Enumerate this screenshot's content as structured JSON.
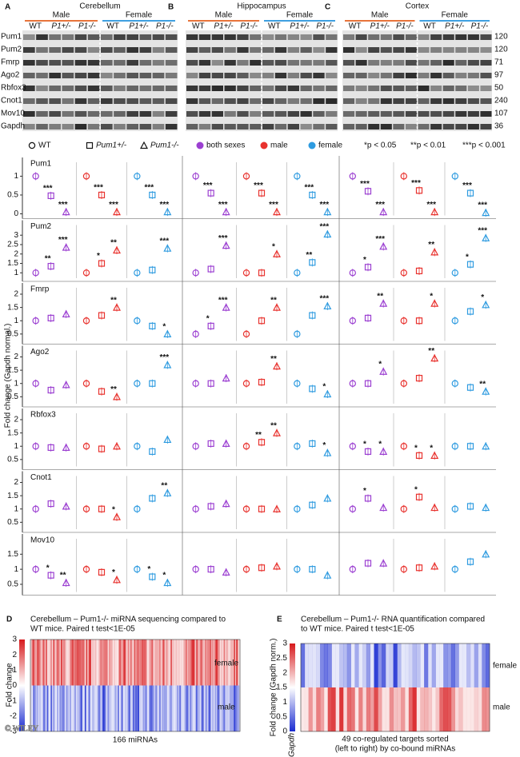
{
  "blots": {
    "regions": [
      {
        "letter": "A",
        "title": "Cerebellum"
      },
      {
        "letter": "B",
        "title": "Hippocampus"
      },
      {
        "letter": "C",
        "title": "Cortex"
      }
    ],
    "sexes": [
      {
        "name": "Male",
        "color": "#e8743b"
      },
      {
        "name": "Female",
        "color": "#3fa0e0"
      }
    ],
    "genotypes": [
      "WT",
      "P1+/-",
      "P1-/-"
    ],
    "proteins": [
      "Pum1",
      "Pum2",
      "Fmrp",
      "Ago2",
      "Rbfox3",
      "Cnot1",
      "Mov10",
      "Gapdh"
    ],
    "sizes": [
      "120",
      "120",
      "71",
      "97",
      "50",
      "240",
      "107",
      "36"
    ]
  },
  "legend": {
    "shapes": [
      "WT",
      "Pum1+/-",
      "Pum1-/-"
    ],
    "groups": [
      {
        "name": "both sexes",
        "color": "#9b3fd1"
      },
      {
        "name": "male",
        "color": "#e8322e"
      },
      {
        "name": "female",
        "color": "#2e9be0"
      }
    ],
    "pvalues": [
      "*p < 0.05",
      "**p < 0.01",
      "***p < 0.001"
    ]
  },
  "dot_plots": {
    "y_label": "Fold change (Gapdh normal.)",
    "rows": [
      {
        "protein": "Pum1",
        "ylim": [
          0,
          1.2
        ],
        "yticks": [
          0,
          0.5,
          1
        ],
        "regions": [
          [
            {
              "values": [
                1,
                0.48,
                0.05
              ],
              "sig": [
                null,
                "***",
                "***"
              ]
            },
            {
              "values": [
                1,
                0.5,
                0.05
              ],
              "sig": [
                null,
                "***",
                "***"
              ]
            },
            {
              "values": [
                1,
                0.5,
                0.05
              ],
              "sig": [
                null,
                "***",
                "***"
              ]
            }
          ],
          [
            {
              "values": [
                1,
                0.55,
                0.05
              ],
              "sig": [
                null,
                "***",
                "***"
              ]
            },
            {
              "values": [
                1,
                0.55,
                0.05
              ],
              "sig": [
                null,
                "***",
                "***"
              ]
            },
            {
              "values": [
                1,
                0.5,
                0.05
              ],
              "sig": [
                null,
                "***",
                "***"
              ]
            }
          ],
          [
            {
              "values": [
                1,
                0.6,
                0.05
              ],
              "sig": [
                null,
                "***",
                "***"
              ]
            },
            {
              "values": [
                1,
                0.62,
                0.05
              ],
              "sig": [
                null,
                "***",
                "***"
              ]
            },
            {
              "values": [
                1,
                0.55,
                0.03
              ],
              "sig": [
                null,
                "***",
                "***"
              ]
            }
          ]
        ]
      },
      {
        "protein": "Pum2",
        "ylim": [
          0.8,
          3.2
        ],
        "yticks": [
          1,
          1.5,
          2,
          2.5,
          3
        ],
        "regions": [
          [
            {
              "values": [
                1,
                1.35,
                2.35
              ],
              "sig": [
                null,
                "**",
                "***"
              ]
            },
            {
              "values": [
                1,
                1.5,
                2.2
              ],
              "sig": [
                null,
                "*",
                "**"
              ]
            },
            {
              "values": [
                1,
                1.15,
                2.3
              ],
              "sig": [
                null,
                null,
                "***"
              ]
            }
          ],
          [
            {
              "values": [
                1,
                1.2,
                2.45
              ],
              "sig": [
                null,
                null,
                "***"
              ]
            },
            {
              "values": [
                1,
                1,
                2
              ],
              "sig": [
                null,
                null,
                "*"
              ]
            },
            {
              "values": [
                1,
                1.55,
                3.05
              ],
              "sig": [
                null,
                "**",
                "***"
              ]
            }
          ],
          [
            {
              "values": [
                1,
                1.3,
                2.4
              ],
              "sig": [
                null,
                "*",
                "***"
              ]
            },
            {
              "values": [
                1,
                1.1,
                2.1
              ],
              "sig": [
                null,
                null,
                "**"
              ]
            },
            {
              "values": [
                1,
                1.45,
                2.85
              ],
              "sig": [
                null,
                "*",
                "***"
              ]
            }
          ]
        ]
      },
      {
        "protein": "Fmrp",
        "ylim": [
          0.3,
          2
        ],
        "yticks": [
          0.5,
          1,
          1.5,
          2
        ],
        "regions": [
          [
            {
              "values": [
                1,
                1.1,
                1.25
              ],
              "sig": [
                null,
                null,
                null
              ]
            },
            {
              "values": [
                1,
                1.2,
                1.5
              ],
              "sig": [
                null,
                null,
                "**"
              ]
            },
            {
              "values": [
                1,
                0.8,
                0.5
              ],
              "sig": [
                null,
                null,
                "*"
              ]
            }
          ],
          [
            {
              "values": [
                0.5,
                0.8,
                1.5
              ],
              "sig": [
                null,
                "*",
                "***"
              ]
            },
            {
              "values": [
                0.5,
                1,
                1.5
              ],
              "sig": [
                null,
                null,
                "**"
              ]
            },
            {
              "values": [
                0.5,
                1.2,
                1.55
              ],
              "sig": [
                null,
                null,
                "***"
              ]
            }
          ],
          [
            {
              "values": [
                1,
                1.1,
                1.65
              ],
              "sig": [
                null,
                null,
                "**"
              ]
            },
            {
              "values": [
                1,
                1,
                1.65
              ],
              "sig": [
                null,
                null,
                "*"
              ]
            },
            {
              "values": [
                1,
                1.35,
                1.6
              ],
              "sig": [
                null,
                null,
                "*"
              ]
            }
          ]
        ]
      },
      {
        "protein": "Ago2",
        "ylim": [
          0.3,
          2
        ],
        "yticks": [
          0.5,
          1,
          1.5,
          2
        ],
        "regions": [
          [
            {
              "values": [
                1,
                0.75,
                0.95
              ],
              "sig": [
                null,
                null,
                null
              ]
            },
            {
              "values": [
                1,
                0.7,
                0.5
              ],
              "sig": [
                null,
                null,
                "**"
              ]
            },
            {
              "values": [
                1,
                1,
                1.7
              ],
              "sig": [
                null,
                null,
                "***"
              ]
            }
          ],
          [
            {
              "values": [
                1,
                1,
                1.2
              ],
              "sig": [
                null,
                null,
                null
              ]
            },
            {
              "values": [
                1,
                1.05,
                1.65
              ],
              "sig": [
                null,
                null,
                "**"
              ]
            },
            {
              "values": [
                1,
                0.8,
                0.6
              ],
              "sig": [
                null,
                null,
                "*"
              ]
            }
          ],
          [
            {
              "values": [
                1,
                1,
                1.45
              ],
              "sig": [
                null,
                null,
                "*"
              ]
            },
            {
              "values": [
                1,
                1.2,
                1.95
              ],
              "sig": [
                null,
                null,
                "**"
              ]
            },
            {
              "values": [
                1,
                0.85,
                0.7
              ],
              "sig": [
                null,
                null,
                "**"
              ]
            }
          ]
        ]
      },
      {
        "protein": "Rbfox3",
        "ylim": [
          0.3,
          2
        ],
        "yticks": [
          0.5,
          1,
          1.5,
          2
        ],
        "regions": [
          [
            {
              "values": [
                1,
                0.95,
                0.95
              ],
              "sig": [
                null,
                null,
                null
              ]
            },
            {
              "values": [
                1,
                0.9,
                1
              ],
              "sig": [
                null,
                null,
                null
              ]
            },
            {
              "values": [
                1,
                0.8,
                1.25
              ],
              "sig": [
                null,
                null,
                null
              ]
            }
          ],
          [
            {
              "values": [
                1,
                1.1,
                1.1
              ],
              "sig": [
                null,
                null,
                null
              ]
            },
            {
              "values": [
                1,
                1.15,
                1.5
              ],
              "sig": [
                null,
                "**",
                "**"
              ]
            },
            {
              "values": [
                1,
                1.1,
                0.75
              ],
              "sig": [
                null,
                null,
                "*"
              ]
            }
          ],
          [
            {
              "values": [
                1,
                0.8,
                0.8
              ],
              "sig": [
                null,
                "*",
                "*"
              ]
            },
            {
              "values": [
                1,
                0.65,
                0.65
              ],
              "sig": [
                null,
                "*",
                "*"
              ]
            },
            {
              "values": [
                1,
                1,
                1
              ],
              "sig": [
                null,
                null,
                null
              ]
            }
          ]
        ]
      },
      {
        "protein": "Cnot1",
        "ylim": [
          0.3,
          2
        ],
        "yticks": [
          0.5,
          1,
          1.5,
          2
        ],
        "regions": [
          [
            {
              "values": [
                1,
                1.2,
                1.1
              ],
              "sig": [
                null,
                null,
                null
              ]
            },
            {
              "values": [
                1,
                1,
                0.7
              ],
              "sig": [
                null,
                null,
                "*"
              ]
            },
            {
              "values": [
                1,
                1.4,
                1.6
              ],
              "sig": [
                null,
                null,
                "**"
              ]
            }
          ],
          [
            {
              "values": [
                1,
                1.1,
                1.2
              ],
              "sig": [
                null,
                null,
                null
              ]
            },
            {
              "values": [
                1,
                1,
                1
              ],
              "sig": [
                null,
                null,
                null
              ]
            },
            {
              "values": [
                1,
                1.15,
                1.4
              ],
              "sig": [
                null,
                null,
                null
              ]
            }
          ],
          [
            {
              "values": [
                1,
                1.4,
                1.05
              ],
              "sig": [
                null,
                "*",
                null
              ]
            },
            {
              "values": [
                1,
                1.45,
                1.05
              ],
              "sig": [
                null,
                "*",
                null
              ]
            },
            {
              "values": [
                1,
                1.1,
                1.05
              ],
              "sig": [
                null,
                null,
                null
              ]
            }
          ]
        ]
      },
      {
        "protein": "Mov10",
        "ylim": [
          0.3,
          1.8
        ],
        "yticks": [
          0.5,
          1,
          1.5
        ],
        "regions": [
          [
            {
              "values": [
                1,
                0.8,
                0.55
              ],
              "sig": [
                null,
                "*",
                "**"
              ]
            },
            {
              "values": [
                1,
                0.9,
                0.65
              ],
              "sig": [
                null,
                null,
                "*"
              ]
            },
            {
              "values": [
                1,
                0.75,
                0.55
              ],
              "sig": [
                null,
                "*",
                "*"
              ]
            }
          ],
          [
            {
              "values": [
                1,
                1,
                0.9
              ],
              "sig": [
                null,
                null,
                null
              ]
            },
            {
              "values": [
                1,
                1.05,
                1.1
              ],
              "sig": [
                null,
                null,
                null
              ]
            },
            {
              "values": [
                1,
                1,
                0.8
              ],
              "sig": [
                null,
                null,
                null
              ]
            }
          ],
          [
            {
              "values": [
                1,
                1.2,
                1.2
              ],
              "sig": [
                null,
                null,
                null
              ]
            },
            {
              "values": [
                1,
                1.05,
                1.1
              ],
              "sig": [
                null,
                null,
                null
              ]
            },
            {
              "values": [
                1,
                1.25,
                1.5
              ],
              "sig": [
                null,
                null,
                null
              ]
            }
          ]
        ]
      }
    ]
  },
  "heatmap_d": {
    "letter": "D",
    "title": [
      "Cerebellum – Pum1-/- miRNA sequencing compared to",
      "WT mice. Paired t test<1E-05"
    ],
    "y_label": "Fold change",
    "ticks": [
      3,
      2,
      1,
      0,
      -1,
      -2,
      -3
    ],
    "top": "female",
    "bottom": "male",
    "x_label": "166 miRNAs"
  },
  "heatmap_e": {
    "letter": "E",
    "title": [
      "Cerebellum – Pum1-/- RNA quantification compared",
      "to WT mice. Paired t test<1E-05"
    ],
    "y_label": "Fold change (Gapdh norm.)",
    "ticks": [
      3,
      2.5,
      2,
      1.5,
      1,
      0.5,
      0
    ],
    "top": "female",
    "bottom": "male",
    "x_label": [
      "49 co-regulated targets sorted",
      "(left to right) by co-bound miRNAs"
    ],
    "corner": "Gapdh"
  },
  "watermark": "© WILEY"
}
